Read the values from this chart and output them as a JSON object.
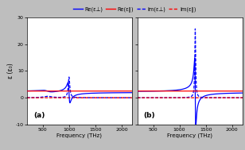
{
  "xlim": [
    200,
    2200
  ],
  "ylim": [
    -10,
    30
  ],
  "yticks": [
    -10,
    0,
    10,
    20,
    30
  ],
  "xticks_a": [
    500,
    1000,
    1500,
    2000
  ],
  "xticks_b": [
    500,
    1000,
    1500,
    2000
  ],
  "xlabel": "Frequency (THz)",
  "ylabel": "ε (ε₀)",
  "panel_a_label": "(a)",
  "panel_b_label": "(b)",
  "blue_color": "#0000FF",
  "red_color": "#FF0000",
  "gray_bar_color": "#BEBEBE",
  "f0_a": 1000,
  "f0_b": 1300,
  "legend_items": [
    {
      "label": "Re(ε⊥)",
      "color": "#0000FF",
      "ls": "solid"
    },
    {
      "label": "Re(ε∥)",
      "color": "#FF0000",
      "ls": "solid"
    },
    {
      "label": "Im(ε⊥)",
      "color": "#0000FF",
      "ls": "dashed"
    },
    {
      "label": "Im(ε∥)",
      "color": "#FF0000",
      "ls": "dashed"
    }
  ]
}
